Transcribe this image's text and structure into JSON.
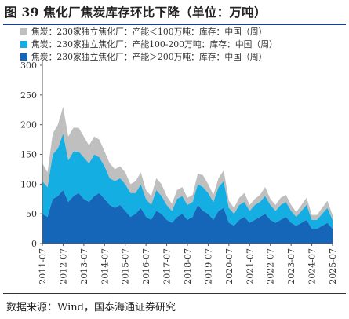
{
  "title": "图 39 焦化厂焦炭库存环比下降（单位：万吨）",
  "source": "数据来源：Wind，国泰海通证券研究",
  "colors": {
    "rule": "#1a3e8a",
    "series_small": "#bfbfbf",
    "series_mid": "#14aee2",
    "series_large": "#1566b8"
  },
  "chart_data": {
    "type": "area",
    "stacked": true,
    "frequency": "weekly",
    "legend": [
      {
        "name": "焦炭：230家独立焦化厂：产能＜100万吨：库存：中国（周）",
        "color": "#bfbfbf"
      },
      {
        "name": "焦炭：230家独立焦化厂：产能100-200万吨：库存：中国（周）",
        "color": "#14aee2"
      },
      {
        "name": "焦炭：230家独立焦化厂：产能＞200万吨：库存：中国（周）",
        "color": "#1566b8"
      }
    ],
    "legend_position": "top-left",
    "ylim": [
      0,
      300
    ],
    "yticks": [
      0,
      50,
      100,
      150,
      200,
      250,
      300
    ],
    "xlim": [
      "2011-07",
      "2025-07"
    ],
    "xticks": [
      "2011-07",
      "2012-07",
      "2013-07",
      "2014-07",
      "2015-07",
      "2016-07",
      "2017-07",
      "2018-07",
      "2019-07",
      "2020-07",
      "2021-07",
      "2022-07",
      "2023-07",
      "2024-07",
      "2025-07"
    ],
    "grid": false,
    "x": [
      "2011-07",
      "2011-10",
      "2012-01",
      "2012-04",
      "2012-07",
      "2012-10",
      "2013-01",
      "2013-04",
      "2013-07",
      "2013-10",
      "2014-01",
      "2014-04",
      "2014-07",
      "2014-10",
      "2015-01",
      "2015-04",
      "2015-07",
      "2015-10",
      "2016-01",
      "2016-04",
      "2016-07",
      "2016-10",
      "2017-01",
      "2017-04",
      "2017-07",
      "2017-10",
      "2018-01",
      "2018-04",
      "2018-07",
      "2018-10",
      "2019-01",
      "2019-04",
      "2019-07",
      "2019-10",
      "2020-01",
      "2020-04",
      "2020-07",
      "2020-10",
      "2021-01",
      "2021-04",
      "2021-07",
      "2021-10",
      "2022-01",
      "2022-04",
      "2022-07",
      "2022-10",
      "2023-01",
      "2023-04",
      "2023-07",
      "2023-10",
      "2024-01",
      "2024-04",
      "2024-07",
      "2024-10",
      "2025-01",
      "2025-04",
      "2025-07"
    ],
    "series": [
      {
        "name": "焦炭：230家独立焦化厂：产能＞200万吨：库存：中国（周）",
        "values": [
          50,
          45,
          75,
          80,
          90,
          70,
          80,
          85,
          75,
          70,
          80,
          85,
          75,
          65,
          60,
          65,
          55,
          45,
          50,
          60,
          45,
          40,
          55,
          50,
          40,
          35,
          45,
          50,
          40,
          45,
          65,
          55,
          50,
          40,
          55,
          60,
          35,
          30,
          40,
          45,
          35,
          40,
          45,
          50,
          40,
          35,
          40,
          45,
          35,
          30,
          35,
          40,
          25,
          25,
          30,
          35,
          25
        ]
      },
      {
        "name": "焦炭：230家独立焦化厂：产能100-200万吨：库存：中国（周）",
        "values": [
          55,
          50,
          75,
          80,
          95,
          70,
          75,
          70,
          70,
          65,
          70,
          60,
          55,
          45,
          45,
          45,
          45,
          40,
          35,
          40,
          30,
          25,
          35,
          30,
          25,
          20,
          30,
          30,
          25,
          25,
          35,
          40,
          35,
          30,
          40,
          45,
          25,
          20,
          25,
          25,
          20,
          25,
          25,
          30,
          25,
          20,
          25,
          25,
          20,
          15,
          20,
          25,
          15,
          15,
          20,
          25,
          15
        ]
      },
      {
        "name": "焦炭：230家独立焦化厂：产能＜100万吨：库存：中国（周）",
        "values": [
          30,
          25,
          35,
          40,
          45,
          40,
          40,
          40,
          35,
          30,
          30,
          30,
          25,
          25,
          20,
          20,
          20,
          15,
          20,
          20,
          15,
          15,
          20,
          20,
          15,
          12,
          15,
          15,
          12,
          12,
          18,
          20,
          15,
          12,
          15,
          18,
          12,
          10,
          12,
          15,
          10,
          10,
          12,
          15,
          10,
          10,
          12,
          12,
          10,
          8,
          10,
          12,
          8,
          8,
          10,
          12,
          8
        ]
      }
    ]
  }
}
